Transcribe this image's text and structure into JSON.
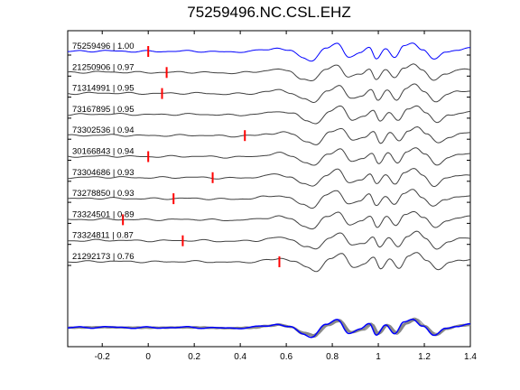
{
  "chart_data": {
    "type": "line",
    "title": "75259496.NC.CSL.EHZ",
    "xlabel": "",
    "ylabel": "",
    "xlim": [
      -0.35,
      1.4
    ],
    "xticks": [
      -0.2,
      0,
      0.2,
      0.4,
      0.6,
      0.8,
      1,
      1.2,
      1.4
    ],
    "xtick_labels": [
      "-0.2",
      "0",
      "0.2",
      "0.4",
      "0.6",
      "0.8",
      "1",
      "1.2",
      "1.4"
    ],
    "grid": false,
    "legend": "none",
    "colors": {
      "reference_trace": "#0000ff",
      "other_traces": "#404040",
      "stack_traces": "#888888",
      "pick_marker": "#ff0000",
      "axes": "#000000"
    },
    "series": [
      {
        "name": "75259496 | 1.00",
        "pick_time": 0.0,
        "reference": true
      },
      {
        "name": "21250906 | 0.97",
        "pick_time": 0.08
      },
      {
        "name": "71314991 | 0.95",
        "pick_time": 0.06
      },
      {
        "name": "73167895 | 0.95",
        "pick_time": null
      },
      {
        "name": "73302536 | 0.94",
        "pick_time": 0.42
      },
      {
        "name": "30166843 | 0.94",
        "pick_time": 0.0
      },
      {
        "name": "73304686 | 0.93",
        "pick_time": 0.28
      },
      {
        "name": "73278850 | 0.93",
        "pick_time": 0.11
      },
      {
        "name": "73324501 | 0.89",
        "pick_time": -0.11
      },
      {
        "name": "73324811 | 0.87",
        "pick_time": 0.15
      },
      {
        "name": "21292173 | 0.76",
        "pick_time": 0.57
      }
    ],
    "waveform_shape": {
      "t": [
        -0.35,
        -0.2,
        0.0,
        0.2,
        0.35,
        0.45,
        0.52,
        0.57,
        0.62,
        0.68,
        0.72,
        0.78,
        0.83,
        0.88,
        0.93,
        0.97,
        1.0,
        1.04,
        1.08,
        1.12,
        1.16,
        1.2,
        1.25,
        1.3,
        1.35,
        1.4
      ],
      "amplitude": [
        0.0,
        0.05,
        0.0,
        0.03,
        -0.05,
        0.0,
        0.2,
        0.35,
        0.1,
        -0.6,
        -0.9,
        0.3,
        0.8,
        -0.5,
        -0.2,
        0.4,
        -0.7,
        0.3,
        -0.6,
        0.5,
        0.9,
        0.2,
        -0.8,
        -0.1,
        0.2,
        0.3
      ]
    }
  }
}
